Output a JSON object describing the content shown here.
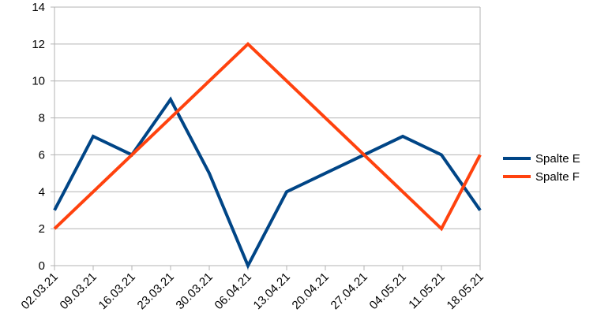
{
  "chart_data": {
    "type": "line",
    "categories": [
      "02.03.21",
      "09.03.21",
      "16.03.21",
      "23.03.21",
      "30.03.21",
      "06.04.21",
      "13.04.21",
      "20.04.21",
      "27.04.21",
      "04.05.21",
      "11.05.21",
      "18.05.21"
    ],
    "series": [
      {
        "name": "Spalte E",
        "color": "#004586",
        "values": [
          3,
          7,
          6,
          9,
          5,
          0,
          4,
          5,
          6,
          7,
          6,
          3
        ]
      },
      {
        "name": "Spalte F",
        "color": "#ff420e",
        "values": [
          2,
          4,
          6,
          8,
          10,
          12,
          10,
          8,
          6,
          4,
          2,
          6
        ]
      }
    ],
    "ylim": [
      0,
      14
    ],
    "yticks": [
      0,
      2,
      4,
      6,
      8,
      10,
      12,
      14
    ],
    "grid": "horizontal",
    "legend_position": "right"
  }
}
